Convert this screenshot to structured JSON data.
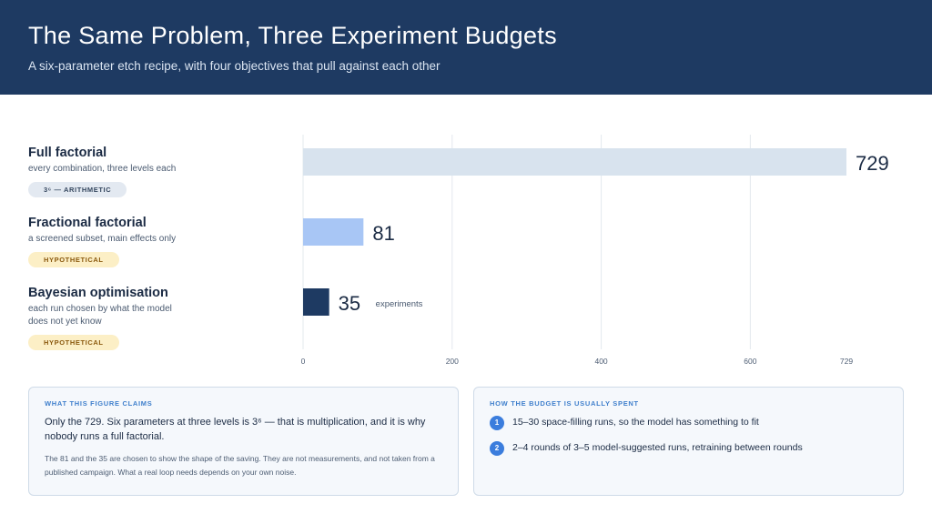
{
  "header": {
    "title": "The Same Problem, Three Experiment Budgets",
    "subtitle": "A six-parameter etch recipe, with four objectives that pull against each other"
  },
  "rows": [
    {
      "name": "Full factorial",
      "desc": "every combination, three levels each",
      "badge": "3⁶ — ARITHMETIC"
    },
    {
      "name": "Fractional factorial",
      "desc": "a screened subset, main effects only",
      "badge": "HYPOTHETICAL"
    },
    {
      "name": "Bayesian optimisation",
      "desc": "each run chosen by what the model does not yet know",
      "badge": "HYPOTHETICAL"
    }
  ],
  "chart_data": {
    "type": "bar",
    "orientation": "horizontal",
    "categories": [
      "Full factorial",
      "Fractional factorial",
      "Bayesian optimisation"
    ],
    "values": [
      729,
      81,
      35
    ],
    "data_labels": [
      "729",
      "81",
      "35"
    ],
    "unit_annotation": "experiments",
    "xticks": [
      0,
      200,
      400,
      600,
      729
    ],
    "xlim": [
      0,
      729
    ],
    "grid": true,
    "colors": [
      "#d8e3ee",
      "#a8c6f5",
      "#1e3a62"
    ]
  },
  "claims_card": {
    "kicker": "WHAT THIS FIGURE CLAIMS",
    "lead": "Only the 729. Six parameters at three levels is 3⁶ — that is multiplication, and it is why nobody runs a full factorial.",
    "fine": "The 81 and the 35 are chosen to show the shape of the saving. They are not measurements, and not taken from a published campaign. What a real loop needs depends on your own noise."
  },
  "budget_card": {
    "kicker": "HOW THE BUDGET IS USUALLY SPENT",
    "steps": [
      {
        "num": "1",
        "text": "15–30 space-filling runs, so the model has something to fit"
      },
      {
        "num": "2",
        "text": "2–4 rounds of 3–5 model-suggested runs, retraining between rounds"
      }
    ]
  }
}
